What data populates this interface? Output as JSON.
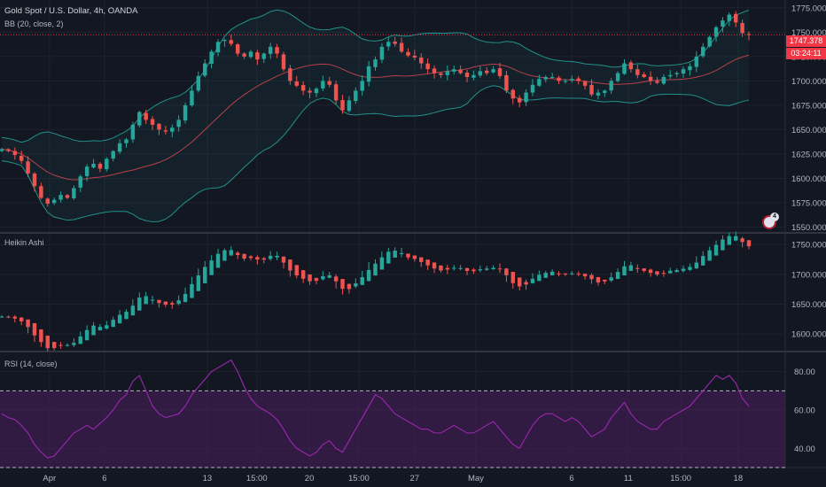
{
  "header": {
    "symbol_title": "Gold Spot / U.S. Dollar, 4h, OANDA",
    "bb_indicator": "BB (20, close, 2)",
    "heikin_title": "Heikin Ashi",
    "rsi_title": "RSI (14, close)"
  },
  "price_tags": {
    "last_price": "1747.378",
    "countdown": "03:24:11"
  },
  "flag_badge": "4",
  "colors": {
    "background": "#131722",
    "up": "#26a69a",
    "down": "#ef5350",
    "bb_band": "#26a69a",
    "bb_basis": "#b7404a",
    "rsi_line": "#9c27b0",
    "rsi_fill": "#4a1f5c",
    "price_line": "#f23645"
  },
  "chart_data": [
    {
      "type": "candlestick",
      "title": "Gold Spot / U.S. Dollar, 4h, OANDA",
      "ylim": [
        1545,
        1783
      ],
      "y_ticks": [
        "1775.000",
        "1750.000",
        "1725.000",
        "1700.000",
        "1675.000",
        "1650.000",
        "1625.000",
        "1600.000",
        "1575.000",
        "1550.000"
      ],
      "y_tick_values": [
        1775,
        1750,
        1725,
        1700,
        1675,
        1650,
        1625,
        1600,
        1575,
        1550
      ],
      "x_ticks": [
        "Apr",
        "6",
        "13",
        "15:00",
        "20",
        "15:00",
        "27",
        "May",
        "6",
        "11",
        "15:00",
        "18"
      ],
      "x_tick_positions": [
        0.063,
        0.133,
        0.264,
        0.327,
        0.394,
        0.457,
        0.528,
        0.606,
        0.728,
        0.8,
        0.867,
        0.94
      ],
      "bollinger": {
        "period": 20,
        "stddev": 2
      },
      "close_path": [
        1630,
        1628,
        1624,
        1618,
        1605,
        1592,
        1580,
        1574,
        1578,
        1583,
        1580,
        1590,
        1602,
        1612,
        1615,
        1610,
        1620,
        1628,
        1636,
        1640,
        1655,
        1668,
        1660,
        1655,
        1650,
        1648,
        1652,
        1660,
        1675,
        1690,
        1705,
        1718,
        1730,
        1740,
        1742,
        1738,
        1728,
        1725,
        1730,
        1722,
        1728,
        1735,
        1728,
        1712,
        1700,
        1695,
        1690,
        1688,
        1692,
        1700,
        1696,
        1680,
        1670,
        1680,
        1690,
        1700,
        1715,
        1722,
        1735,
        1740,
        1738,
        1730,
        1726,
        1724,
        1718,
        1712,
        1708,
        1706,
        1710,
        1712,
        1708,
        1704,
        1706,
        1710,
        1708,
        1712,
        1705,
        1690,
        1682,
        1678,
        1688,
        1696,
        1702,
        1704,
        1704,
        1700,
        1700,
        1702,
        1700,
        1695,
        1686,
        1688,
        1690,
        1700,
        1708,
        1718,
        1712,
        1706,
        1704,
        1700,
        1698,
        1704,
        1706,
        1708,
        1712,
        1715,
        1725,
        1735,
        1745,
        1755,
        1762,
        1768,
        1760,
        1749,
        1747.378
      ],
      "last_price": 1747.378,
      "countdown": "03:24:11"
    },
    {
      "type": "candlestick",
      "title": "Heikin Ashi",
      "ylim": [
        1572,
        1768
      ],
      "y_ticks": [
        "1750.000",
        "1700.000",
        "1650.000",
        "1600.000"
      ],
      "y_tick_values": [
        1750,
        1700,
        1650,
        1600
      ]
    },
    {
      "type": "line",
      "title": "RSI (14, close)",
      "ylim": [
        30,
        90
      ],
      "y_ticks": [
        "80.00",
        "60.00",
        "40.00"
      ],
      "y_tick_values": [
        80,
        60,
        40
      ],
      "bands": [
        30,
        70
      ],
      "values": [
        58,
        56,
        55,
        52,
        48,
        42,
        38,
        35,
        36,
        40,
        44,
        48,
        50,
        52,
        50,
        53,
        56,
        60,
        65,
        68,
        75,
        78,
        70,
        62,
        58,
        56,
        57,
        58,
        62,
        68,
        72,
        76,
        80,
        82,
        84,
        86,
        80,
        72,
        66,
        62,
        60,
        58,
        55,
        50,
        44,
        40,
        38,
        36,
        38,
        42,
        44,
        40,
        38,
        44,
        50,
        56,
        62,
        68,
        66,
        62,
        58,
        56,
        54,
        52,
        50,
        50,
        48,
        48,
        50,
        52,
        50,
        48,
        48,
        50,
        52,
        54,
        50,
        46,
        42,
        40,
        46,
        52,
        56,
        58,
        58,
        56,
        54,
        56,
        54,
        50,
        46,
        48,
        50,
        56,
        60,
        64,
        58,
        54,
        52,
        50,
        50,
        54,
        56,
        58,
        60,
        62,
        66,
        70,
        74,
        78,
        76,
        78,
        74,
        66,
        62
      ]
    }
  ]
}
